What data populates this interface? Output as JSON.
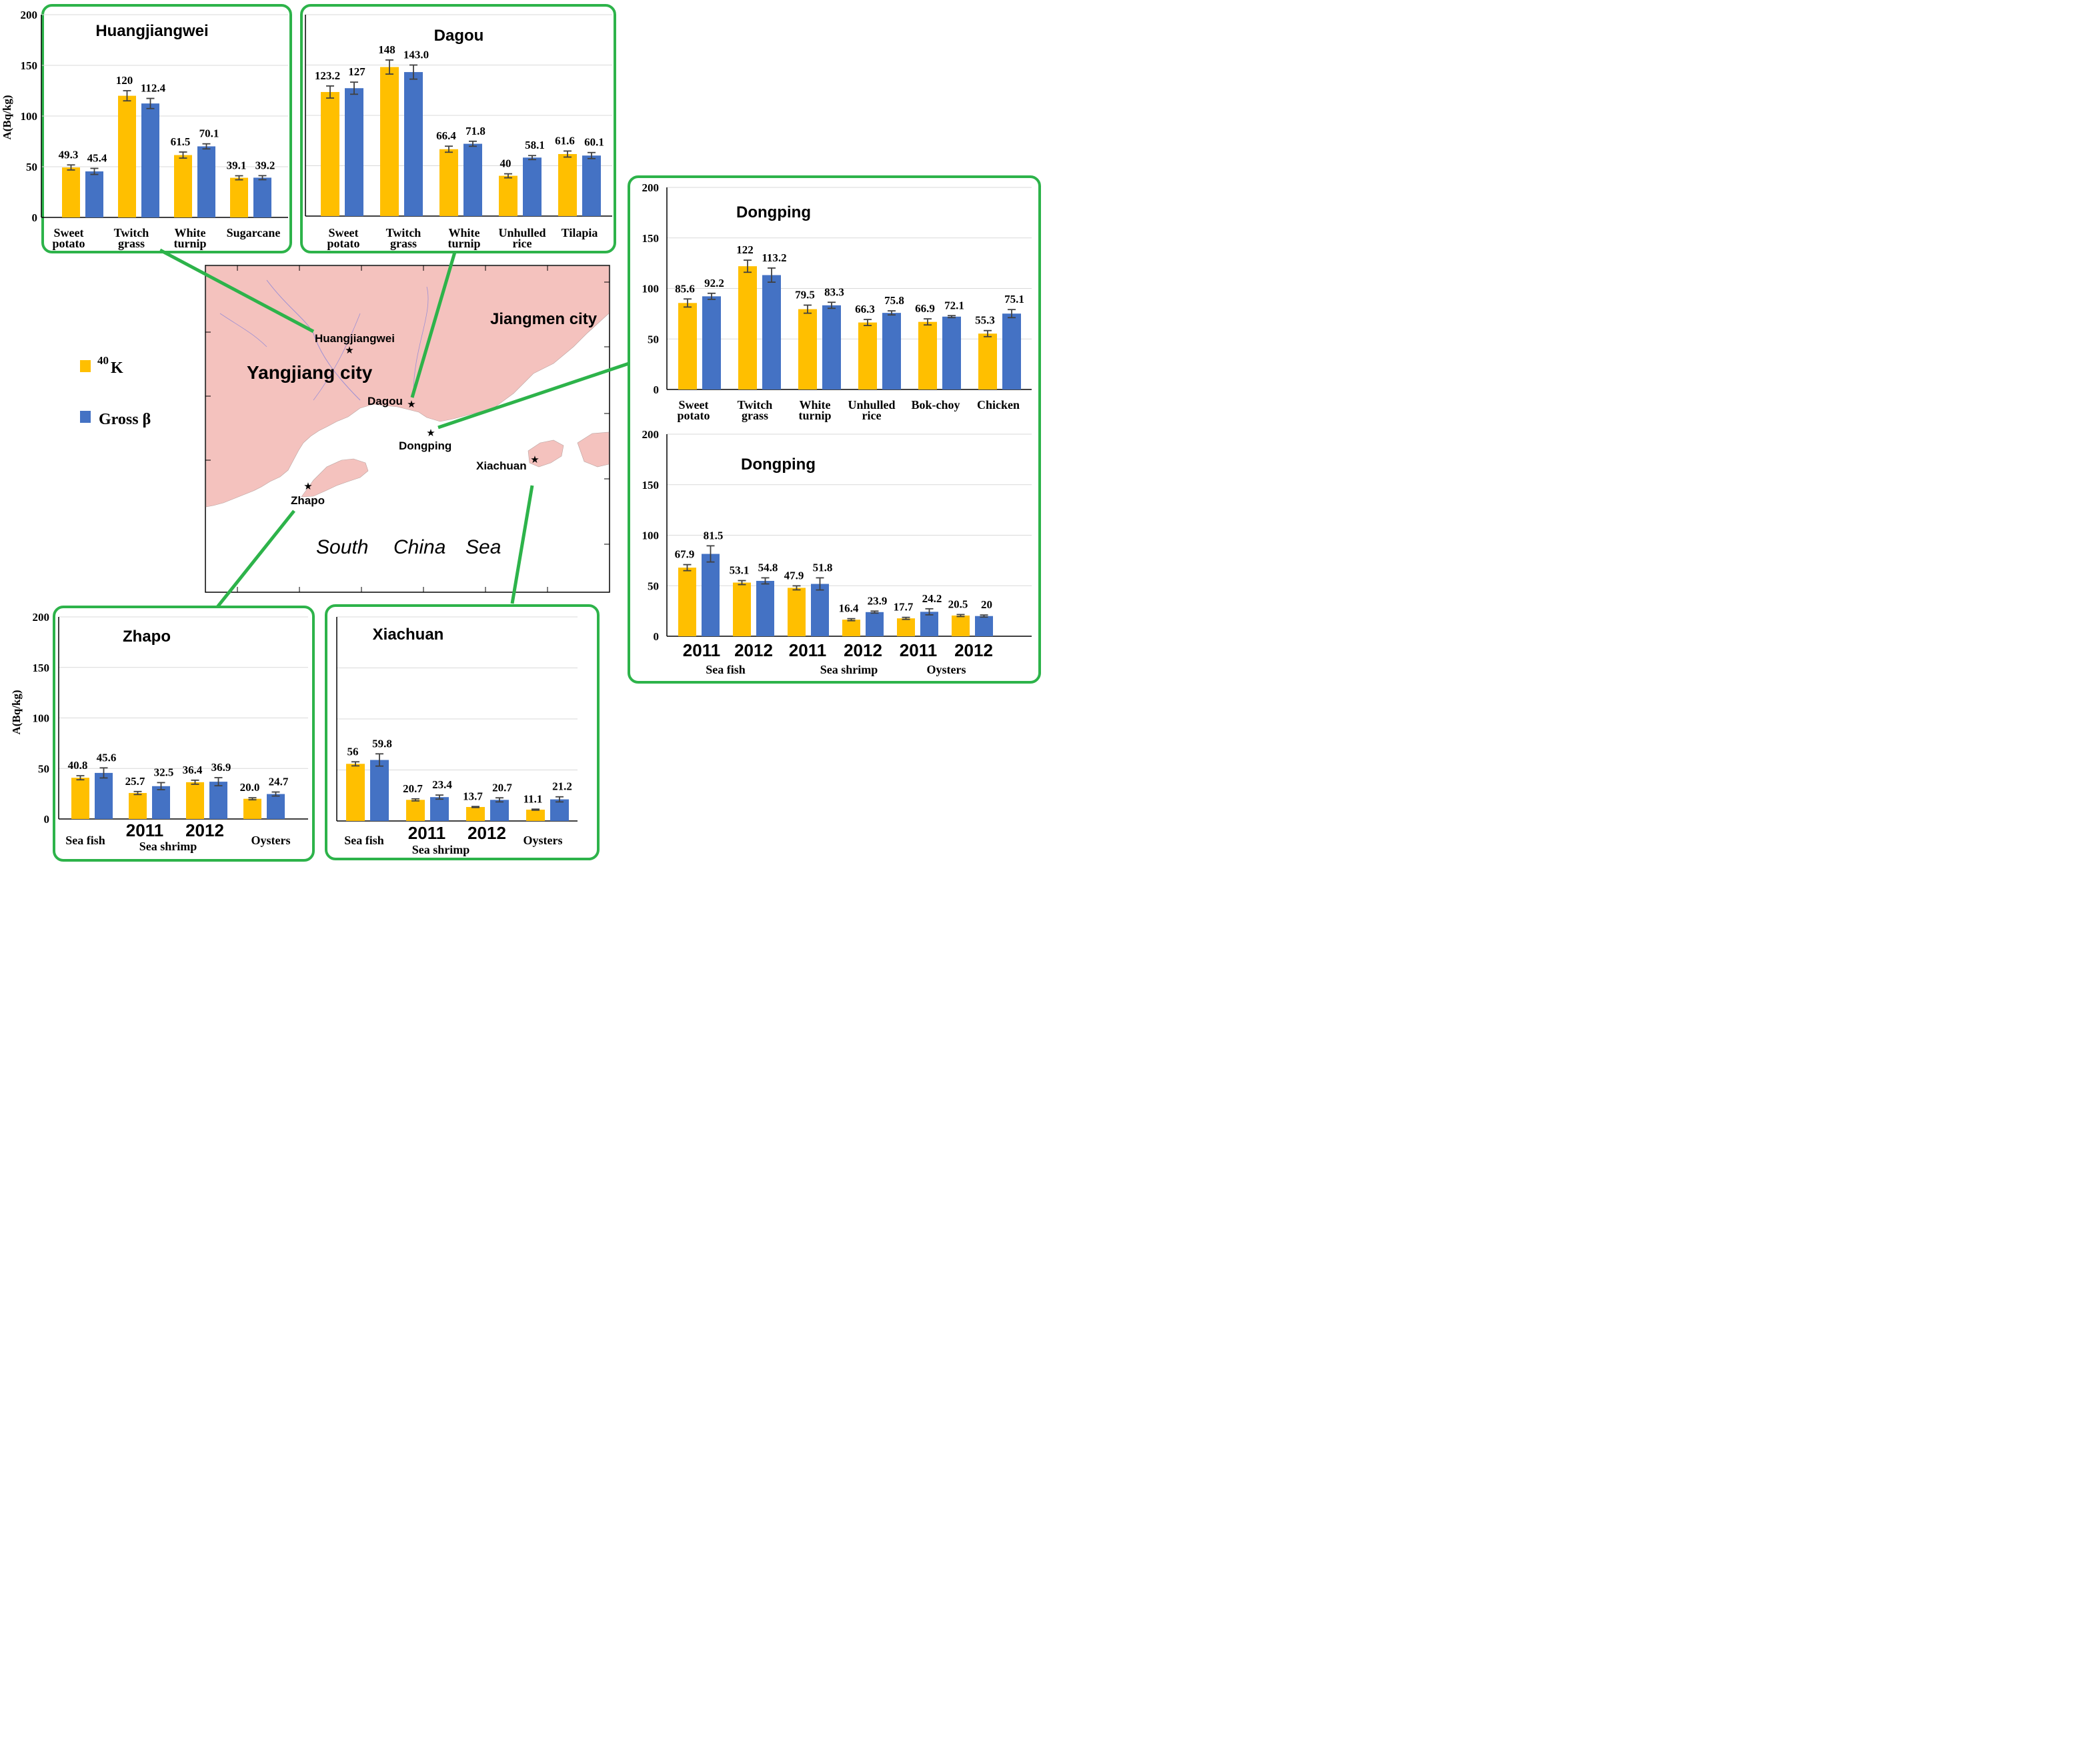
{
  "colors": {
    "k40": "#FFBF00",
    "gross_beta": "#4472C4",
    "frame": "#2DB34A",
    "land": "#F4C2BE",
    "sea": "#FFFFFF",
    "grid": "#D9D9D9"
  },
  "legend": {
    "k40_sup": "40",
    "k40_main": "K",
    "gross_beta": "Gross β"
  },
  "map": {
    "yangjiang": "Yangjiang city",
    "jiangmen": "Jiangmen city",
    "sea_south": "South",
    "sea_china": "China",
    "sea_sea": "Sea",
    "sites": {
      "huangjiangwei": "Huangjiangwei",
      "dagou": "Dagou",
      "dongping": "Dongping",
      "xiachuan": "Xiachuan",
      "zhapo": "Zhapo"
    }
  },
  "chart_data": [
    {
      "id": "huangjiangwei",
      "type": "bar",
      "title": "Huangjiangwei",
      "ylabel": "A(Bq/kg)",
      "ylim": [
        0,
        200
      ],
      "yticks": [
        "0",
        "50",
        "100",
        "150",
        "200"
      ],
      "categories": [
        [
          "Sweet",
          "potato"
        ],
        [
          "Twitch",
          "grass"
        ],
        [
          "White",
          "turnip"
        ],
        [
          "Sugarcane"
        ]
      ],
      "group_labels": [],
      "series": [
        {
          "name": "40K",
          "values": [
            49.3,
            120,
            61.5,
            39.1
          ],
          "labels": [
            "49.3",
            "120",
            "61.5",
            "39.1"
          ],
          "errors": [
            2.5,
            5,
            3,
            2
          ]
        },
        {
          "name": "Gross β",
          "values": [
            45.4,
            112.4,
            70.1,
            39.2
          ],
          "labels": [
            "45.4",
            "112.4",
            "70.1",
            "39.2"
          ],
          "errors": [
            3,
            5,
            2.5,
            2
          ]
        }
      ]
    },
    {
      "id": "dagou",
      "type": "bar",
      "title": "Dagou",
      "ylabel": "",
      "ylim": [
        0,
        200
      ],
      "yticks": [],
      "categories": [
        [
          "Sweet",
          "potato"
        ],
        [
          "Twitch",
          "grass"
        ],
        [
          "White",
          "turnip"
        ],
        [
          "Unhulled",
          "rice"
        ],
        [
          "Tilapia"
        ]
      ],
      "group_labels": [],
      "series": [
        {
          "name": "40K",
          "values": [
            123.2,
            148,
            66.4,
            40,
            61.6
          ],
          "labels": [
            "123.2",
            "148",
            "66.4",
            "40",
            "61.6"
          ],
          "errors": [
            6,
            7,
            3,
            2,
            3
          ]
        },
        {
          "name": "Gross β",
          "values": [
            127,
            143.0,
            71.8,
            58.1,
            60.1
          ],
          "labels": [
            "127",
            "143.0",
            "71.8",
            "58.1",
            "60.1"
          ],
          "errors": [
            6,
            7,
            2.5,
            2,
            3
          ]
        }
      ]
    },
    {
      "id": "dongping_crops",
      "type": "bar",
      "title": "Dongping",
      "ylabel": "",
      "ylim": [
        0,
        200
      ],
      "yticks": [
        "0",
        "50",
        "100",
        "150",
        "200"
      ],
      "categories": [
        [
          "Sweet",
          "potato"
        ],
        [
          "Twitch",
          "grass"
        ],
        [
          "White",
          "turnip"
        ],
        [
          "Unhulled",
          "rice"
        ],
        [
          "Bok-choy"
        ],
        [
          "Chicken"
        ]
      ],
      "group_labels": [],
      "series": [
        {
          "name": "40K",
          "values": [
            85.6,
            122,
            79.5,
            66.3,
            66.9,
            55.3
          ],
          "labels": [
            "85.6",
            "122",
            "79.5",
            "66.3",
            "66.9",
            "55.3"
          ],
          "errors": [
            4,
            6,
            4,
            3,
            3,
            3
          ]
        },
        {
          "name": "Gross β",
          "values": [
            92.2,
            113.2,
            83.3,
            75.8,
            72.1,
            75.1
          ],
          "labels": [
            "92.2",
            "113.2",
            "83.3",
            "75.8",
            "72.1",
            "75.1"
          ],
          "errors": [
            3,
            7,
            3,
            2,
            1,
            4
          ]
        }
      ]
    },
    {
      "id": "dongping_seafood",
      "type": "bar",
      "title": "Dongping",
      "ylabel": "",
      "ylim": [
        0,
        200
      ],
      "yticks": [
        "0",
        "50",
        "100",
        "150",
        "200"
      ],
      "categories": [
        [
          "2011"
        ],
        [
          "2012"
        ],
        [
          "2011"
        ],
        [
          "2012"
        ],
        [
          "2011"
        ],
        [
          "2012"
        ]
      ],
      "group_labels": [
        "Sea fish",
        "Sea shrimp",
        "Oysters"
      ],
      "series": [
        {
          "name": "40K",
          "values": [
            67.9,
            53.1,
            47.9,
            16.4,
            17.7,
            20.5
          ],
          "labels": [
            "67.9",
            "53.1",
            "47.9",
            "16.4",
            "17.7",
            "20.5"
          ],
          "errors": [
            3,
            2,
            2,
            1,
            1,
            1
          ]
        },
        {
          "name": "Gross β",
          "values": [
            81.5,
            54.8,
            51.8,
            23.9,
            24.2,
            20
          ],
          "labels": [
            "81.5",
            "54.8",
            "51.8",
            "23.9",
            "24.2",
            "20"
          ],
          "errors": [
            8,
            3,
            6,
            1,
            3,
            1
          ]
        }
      ]
    },
    {
      "id": "zhapo",
      "type": "bar",
      "title": "Zhapo",
      "ylabel": "A(Bq/kg)",
      "ylim": [
        0,
        200
      ],
      "yticks": [
        "0",
        "50",
        "100",
        "150",
        "200"
      ],
      "categories": [
        [
          "Sea fish"
        ],
        [
          "2011"
        ],
        [
          "2012"
        ],
        [
          "Oysters"
        ]
      ],
      "group_labels": [
        "Sea shrimp"
      ],
      "series": [
        {
          "name": "40K",
          "values": [
            40.8,
            25.7,
            36.4,
            20.0
          ],
          "labels": [
            "40.8",
            "25.7",
            "36.4",
            "20.0"
          ],
          "errors": [
            2,
            1.5,
            2,
            1
          ]
        },
        {
          "name": "Gross β",
          "values": [
            45.6,
            32.5,
            36.9,
            24.7
          ],
          "labels": [
            "45.6",
            "32.5",
            "36.9",
            "24.7"
          ],
          "errors": [
            5,
            3.5,
            4,
            2
          ]
        }
      ]
    },
    {
      "id": "xiachuan",
      "type": "bar",
      "title": "Xiachuan",
      "ylabel": "",
      "ylim": [
        0,
        200
      ],
      "yticks": [],
      "categories": [
        [
          "Sea fish"
        ],
        [
          "2011"
        ],
        [
          "2012"
        ],
        [
          "Oysters"
        ]
      ],
      "group_labels": [
        "Sea shrimp"
      ],
      "series": [
        {
          "name": "40K",
          "values": [
            56,
            20.7,
            13.7,
            11.1
          ],
          "labels": [
            "56",
            "20.7",
            "13.7",
            "11.1"
          ],
          "errors": [
            2,
            1,
            0.5,
            0.5
          ]
        },
        {
          "name": "Gross β",
          "values": [
            59.8,
            23.4,
            20.7,
            21.2
          ],
          "labels": [
            "59.8",
            "23.4",
            "20.7",
            "21.2"
          ],
          "errors": [
            6,
            2,
            2,
            2.5
          ]
        }
      ]
    }
  ]
}
